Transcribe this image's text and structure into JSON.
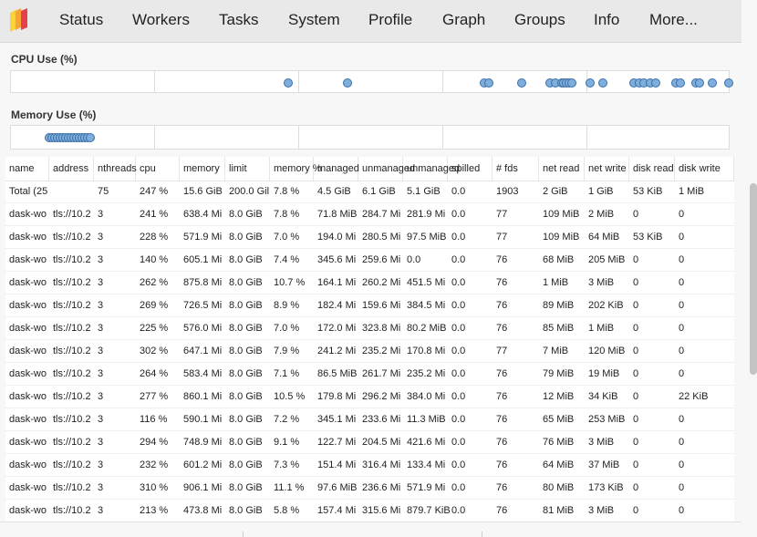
{
  "nav": {
    "items": [
      "Status",
      "Workers",
      "Tasks",
      "System",
      "Profile",
      "Graph",
      "Groups",
      "Info",
      "More..."
    ]
  },
  "cpu_plot": {
    "title": "CPU Use (%)",
    "point_count": 20
  },
  "memory_plot": {
    "title": "Memory Use (%)",
    "point_count": 25
  },
  "colors": {
    "dot_fill": "#7eaedb",
    "dot_stroke": "#3b6fa8",
    "logo_orange": "#f7a234",
    "logo_red": "#e5414a",
    "logo_yellow": "#fbd23a"
  },
  "table": {
    "columns": [
      "name",
      "address",
      "nthreads",
      "cpu",
      "memory",
      "limit",
      "memory %",
      "managed",
      "unmanaged",
      "unmanaged",
      "spilled",
      "# fds",
      "net read",
      "net write",
      "disk read",
      "disk write"
    ],
    "rows": [
      [
        "Total (25",
        "",
        "75",
        "247 %",
        "15.6 GiB",
        "200.0 Gil",
        "7.8 %",
        "4.5 GiB",
        "6.1 GiB",
        "5.1 GiB",
        "0.0",
        "1903",
        "2 GiB",
        "1 GiB",
        "53 KiB",
        "1 MiB"
      ],
      [
        "dask-wo",
        "tls://10.2",
        "3",
        "241 %",
        "638.4 Mi",
        "8.0 GiB",
        "7.8 %",
        "71.8 MiB",
        "284.7 Mi",
        "281.9 Mi",
        "0.0",
        "77",
        "109 MiB",
        "2 MiB",
        "0",
        "0"
      ],
      [
        "dask-wo",
        "tls://10.2",
        "3",
        "228 %",
        "571.9 Mi",
        "8.0 GiB",
        "7.0 %",
        "194.0 Mi",
        "280.5 Mi",
        "97.5 MiB",
        "0.0",
        "77",
        "109 MiB",
        "64 MiB",
        "53 KiB",
        "0"
      ],
      [
        "dask-wo",
        "tls://10.2",
        "3",
        "140 %",
        "605.1 Mi",
        "8.0 GiB",
        "7.4 %",
        "345.6 Mi",
        "259.6 Mi",
        "0.0",
        "0.0",
        "76",
        "68 MiB",
        "205 MiB",
        "0",
        "0"
      ],
      [
        "dask-wo",
        "tls://10.2",
        "3",
        "262 %",
        "875.8 Mi",
        "8.0 GiB",
        "10.7 %",
        "164.1 Mi",
        "260.2 Mi",
        "451.5 Mi",
        "0.0",
        "76",
        "1 MiB",
        "3 MiB",
        "0",
        "0"
      ],
      [
        "dask-wo",
        "tls://10.2",
        "3",
        "269 %",
        "726.5 Mi",
        "8.0 GiB",
        "8.9 %",
        "182.4 Mi",
        "159.6 Mi",
        "384.5 Mi",
        "0.0",
        "76",
        "89 MiB",
        "202 KiB",
        "0",
        "0"
      ],
      [
        "dask-wo",
        "tls://10.2",
        "3",
        "225 %",
        "576.0 Mi",
        "8.0 GiB",
        "7.0 %",
        "172.0 Mi",
        "323.8 Mi",
        "80.2 MiB",
        "0.0",
        "76",
        "85 MiB",
        "1 MiB",
        "0",
        "0"
      ],
      [
        "dask-wo",
        "tls://10.2",
        "3",
        "302 %",
        "647.1 Mi",
        "8.0 GiB",
        "7.9 %",
        "241.2 Mi",
        "235.2 Mi",
        "170.8 Mi",
        "0.0",
        "77",
        "7 MiB",
        "120 MiB",
        "0",
        "0"
      ],
      [
        "dask-wo",
        "tls://10.2",
        "3",
        "264 %",
        "583.4 Mi",
        "8.0 GiB",
        "7.1 %",
        "86.5 MiB",
        "261.7 Mi",
        "235.2 Mi",
        "0.0",
        "76",
        "79 MiB",
        "19 MiB",
        "0",
        "0"
      ],
      [
        "dask-wo",
        "tls://10.2",
        "3",
        "277 %",
        "860.1 Mi",
        "8.0 GiB",
        "10.5 %",
        "179.8 Mi",
        "296.2 Mi",
        "384.0 Mi",
        "0.0",
        "76",
        "12 MiB",
        "34 KiB",
        "0",
        "22 KiB"
      ],
      [
        "dask-wo",
        "tls://10.2",
        "3",
        "116 %",
        "590.1 Mi",
        "8.0 GiB",
        "7.2 %",
        "345.1 Mi",
        "233.6 Mi",
        "11.3 MiB",
        "0.0",
        "76",
        "65 MiB",
        "253 MiB",
        "0",
        "0"
      ],
      [
        "dask-wo",
        "tls://10.2",
        "3",
        "294 %",
        "748.9 Mi",
        "8.0 GiB",
        "9.1 %",
        "122.7 Mi",
        "204.5 Mi",
        "421.6 Mi",
        "0.0",
        "76",
        "76 MiB",
        "3 MiB",
        "0",
        "0"
      ],
      [
        "dask-wo",
        "tls://10.2",
        "3",
        "232 %",
        "601.2 Mi",
        "8.0 GiB",
        "7.3 %",
        "151.4 Mi",
        "316.4 Mi",
        "133.4 Mi",
        "0.0",
        "76",
        "64 MiB",
        "37 MiB",
        "0",
        "0"
      ],
      [
        "dask-wo",
        "tls://10.2",
        "3",
        "310 %",
        "906.1 Mi",
        "8.0 GiB",
        "11.1 %",
        "97.6 MiB",
        "236.6 Mi",
        "571.9 Mi",
        "0.0",
        "76",
        "80 MiB",
        "173 KiB",
        "0",
        "0"
      ],
      [
        "dask-wo",
        "tls://10.2",
        "3",
        "213 %",
        "473.8 Mi",
        "8.0 GiB",
        "5.8 %",
        "157.4 Mi",
        "315.6 Mi",
        "879.7 KiB",
        "0.0",
        "76",
        "81 MiB",
        "3 MiB",
        "0",
        "0"
      ]
    ]
  }
}
